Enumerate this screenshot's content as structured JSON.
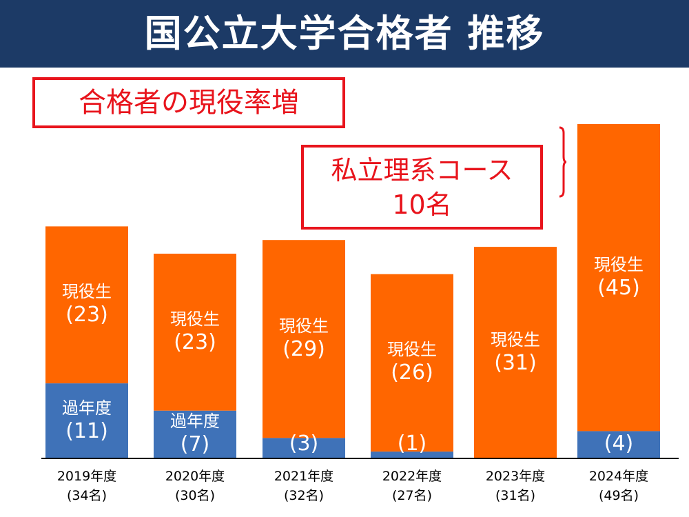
{
  "header": {
    "title": "国公立大学合格者 推移"
  },
  "callouts": {
    "headline": "合格者の現役率増",
    "course_line1": "私立理系コース",
    "course_line2": "10名"
  },
  "chart_data": {
    "type": "bar",
    "stacked": true,
    "title": "国公立大学合格者 推移",
    "categories": [
      "2019年度",
      "2020年度",
      "2021年度",
      "2022年度",
      "2023年度",
      "2024年度"
    ],
    "totals_labels": [
      "(34名)",
      "(30名)",
      "(32名)",
      "(27名)",
      "(31名)",
      "(49名)"
    ],
    "series": [
      {
        "name": "過年度",
        "values": [
          11,
          7,
          3,
          1,
          0,
          4
        ],
        "labels": [
          "(11)",
          "(7)",
          "(3)",
          "(1)",
          "",
          "(4)"
        ],
        "color": "#3f72b8"
      },
      {
        "name": "現役生",
        "values": [
          23,
          23,
          29,
          26,
          31,
          45
        ],
        "labels": [
          "(23)",
          "(23)",
          "(29)",
          "(26)",
          "(31)",
          "(45)"
        ],
        "color": "#ff6600"
      }
    ],
    "ylim": [
      0,
      50
    ],
    "grid": false
  }
}
